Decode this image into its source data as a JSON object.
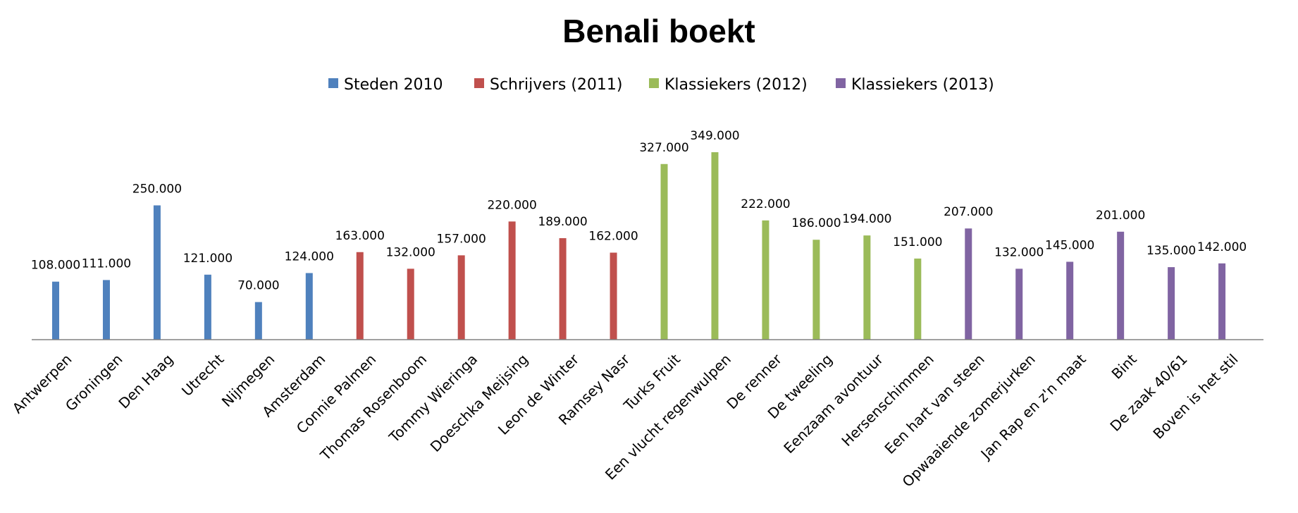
{
  "chart_data": {
    "type": "bar",
    "title": "Benali boekt",
    "xlabel": "",
    "ylabel": "",
    "ylim": [
      0,
      349000
    ],
    "grid": false,
    "legend_position": "top",
    "categories": [
      "Antwerpen",
      "Groningen",
      "Den Haag",
      "Utrecht",
      "Nijmegen",
      "Amsterdam",
      "Connie Palmen",
      "Thomas Rosenboom",
      "Tommy Wieringa",
      "Doeschka Meijsing",
      "Leon de Winter",
      "Ramsey Nasr",
      "Turks Fruit",
      "Een vlucht regenwulpen",
      "De renner",
      "De tweeling",
      "Eenzaam avontuur",
      "Hersenschimmen",
      "Een hart van steen",
      "Opwaaiende zomerjurken",
      "Jan Rap en z'n maat",
      "Bint",
      "De zaak 40/61",
      "Boven is het stil"
    ],
    "series": [
      {
        "name": "Steden 2010",
        "color": "#4F81BD",
        "values": [
          108000,
          111000,
          250000,
          121000,
          70000,
          124000,
          null,
          null,
          null,
          null,
          null,
          null,
          null,
          null,
          null,
          null,
          null,
          null,
          null,
          null,
          null,
          null,
          null,
          null
        ],
        "labels": [
          "108.000",
          "111.000",
          "250.000",
          "121.000",
          "70.000",
          "124.000",
          null,
          null,
          null,
          null,
          null,
          null,
          null,
          null,
          null,
          null,
          null,
          null,
          null,
          null,
          null,
          null,
          null,
          null
        ]
      },
      {
        "name": "Schrijvers (2011)",
        "color": "#C0504D",
        "values": [
          null,
          null,
          null,
          null,
          null,
          null,
          163000,
          132000,
          157000,
          220000,
          189000,
          162000,
          null,
          null,
          null,
          null,
          null,
          null,
          null,
          null,
          null,
          null,
          null,
          null
        ],
        "labels": [
          null,
          null,
          null,
          null,
          null,
          null,
          "163.000",
          "132.000",
          "157.000",
          "220.000",
          "189.000",
          "162.000",
          null,
          null,
          null,
          null,
          null,
          null,
          null,
          null,
          null,
          null,
          null,
          null
        ]
      },
      {
        "name": "Klassiekers (2012)",
        "color": "#9BBB59",
        "values": [
          null,
          null,
          null,
          null,
          null,
          null,
          null,
          null,
          null,
          null,
          null,
          null,
          327000,
          349000,
          222000,
          186000,
          194000,
          151000,
          null,
          null,
          null,
          null,
          null,
          null
        ],
        "labels": [
          null,
          null,
          null,
          null,
          null,
          null,
          null,
          null,
          null,
          null,
          null,
          null,
          "327.000",
          "349.000",
          "222.000",
          "186.000",
          "194.000",
          "151.000",
          null,
          null,
          null,
          null,
          null,
          null
        ]
      },
      {
        "name": "Klassiekers (2013)",
        "color": "#8064A2",
        "values": [
          null,
          null,
          null,
          null,
          null,
          null,
          null,
          null,
          null,
          null,
          null,
          null,
          null,
          null,
          null,
          null,
          null,
          null,
          207000,
          132000,
          145000,
          201000,
          135000,
          142000
        ],
        "labels": [
          null,
          null,
          null,
          null,
          null,
          null,
          null,
          null,
          null,
          null,
          null,
          null,
          null,
          null,
          null,
          null,
          null,
          null,
          "207.000",
          "132.000",
          "145.000",
          "201.000",
          "135.000",
          "142.000"
        ]
      }
    ]
  }
}
